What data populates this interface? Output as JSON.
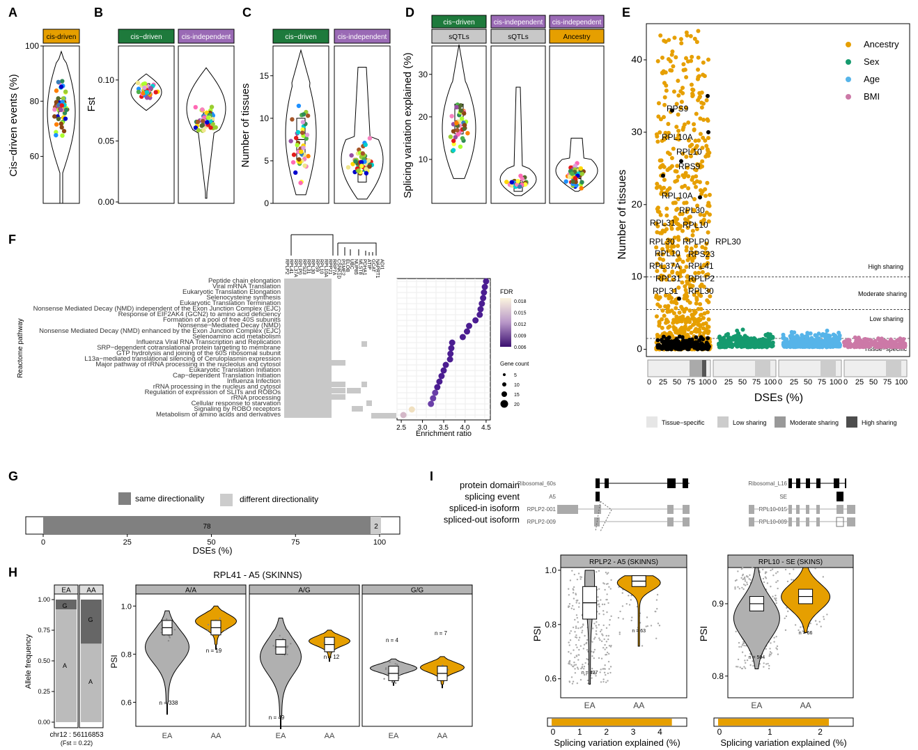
{
  "panel_labels": [
    "A",
    "B",
    "C",
    "D",
    "E",
    "F",
    "G",
    "H",
    "I"
  ],
  "colors": {
    "cis_driven": "#1e7a3c",
    "cis_independent": "#9a6ab5",
    "ancestry": "#e69f00",
    "sex": "#159a6e",
    "age": "#56b4e9",
    "bmi": "#cc79a7",
    "strip_gray": "#c8c8c8",
    "same_dir": "#808080",
    "diff_dir": "#cccccc"
  },
  "panelA": {
    "strip": "cis-driven",
    "ylabel": "Cis−driven events (%)",
    "yticks": [
      "60",
      "80",
      "100"
    ]
  },
  "panelB": {
    "strips": [
      "cis−driven",
      "cis-independent"
    ],
    "ylabel": "Fst",
    "yticks": [
      "0.00",
      "0.05",
      "0.10"
    ]
  },
  "panelC": {
    "strips": [
      "cis−driven",
      "cis-independent"
    ],
    "ylabel": "Number of tissues",
    "yticks": [
      "0",
      "5",
      "10",
      "15"
    ]
  },
  "panelD": {
    "strips_top": [
      "cis−driven",
      "cis-independent",
      "cis-independent"
    ],
    "strips_bottom": [
      "sQTLs",
      "sQTLs",
      "Ancestry"
    ],
    "ylabel": "Splicing variation explained (%)",
    "yticks": [
      "10",
      "20",
      "30"
    ]
  },
  "panelE": {
    "ylabel": "Number of tissues",
    "xlabel": "DSEs (%)",
    "yticks": [
      "0",
      "10",
      "20",
      "30",
      "40"
    ],
    "xticks": [
      "0",
      "25",
      "50",
      "75",
      "100"
    ],
    "legend": [
      "Ancestry",
      "Sex",
      "Age",
      "BMI"
    ],
    "sharing_labels": [
      "High sharing",
      "Moderate sharing",
      "Low sharing",
      "Tissue−specific"
    ],
    "genes": [
      "RPS9",
      "RPL10A",
      "RPL10",
      "RPS9",
      "RPL10A",
      "RPL30",
      "RPL31",
      "RPL10",
      "RPL30",
      "RPLP0",
      "RPL30",
      "RPL10",
      "RPS23",
      "RPL37A",
      "RPL41",
      "RPL31",
      "RPLP2",
      "RPL31",
      "RPL30"
    ],
    "bottom_legend": [
      "Tissue−specific",
      "Low sharing",
      "Moderate sharing",
      "High sharing"
    ]
  },
  "panelF": {
    "ylabel": "Reactome pathway",
    "xlabel": "Enrichment ratio",
    "xticks": [
      "2.5",
      "3.0",
      "3.5",
      "4.0",
      "4.5"
    ],
    "genes": [
      "RPLP2",
      "RPL41",
      "RPL37A",
      "RPLP0",
      "RPS23",
      "RPL31",
      "RPL30",
      "RPS9",
      "RPL10",
      "RPL10A",
      "RPP21",
      "RRP7A",
      "CSNK1D",
      "PSME2",
      "ELOB",
      "UBC",
      "NUP85",
      "MLST8",
      "PDHA1",
      "ATIP",
      "GCAT",
      "NAPRT1",
      "ADI1"
    ],
    "pathways": [
      "Peptide chain elongation",
      "Viral mRNA Translation",
      "Eukaryotic Translation Elongation",
      "Selenocysteine synthesis",
      "Eukaryotic Translation Termination",
      "Nonsense Mediated Decay (NMD) independent of the Exon Junction Complex (EJC)",
      "Response of EIF2AK4 (GCN2) to amino acid deficiency",
      "Formation of a pool of free 40S subunits",
      "Nonsense−Mediated Decay (NMD)",
      "Nonsense Mediated Decay (NMD) enhanced by the Exon Junction Complex (EJC)",
      "Selenoamino acid metabolism",
      "Influenza Viral RNA Transcription and Replication",
      "SRP−dependent cotranslational protein targeting to membrane",
      "GTP hydrolysis and joining of the 60S ribosomal subunit",
      "L13a−mediated translational silencing of Ceruloplasmin expression",
      "Major pathway of rRNA processing in the nucleolus and cytosol",
      "Eukaryotic Translation Initiation",
      "Cap−dependent Translation Initiation",
      "Influenza Infection",
      "rRNA processing in the nucleus and cytosol",
      "Regulation of expression of SLITs and ROBOs",
      "rRNA processing",
      "Cellular response to starvation",
      "Signaling by ROBO receptors",
      "Metabolism of amino acids and derivatives"
    ],
    "enrichment": [
      4.5,
      4.47,
      4.45,
      4.43,
      4.4,
      4.37,
      4.35,
      4.25,
      4.1,
      4.05,
      3.95,
      3.7,
      3.68,
      3.66,
      3.65,
      3.55,
      3.5,
      3.45,
      3.4,
      3.35,
      3.3,
      3.25,
      3.2,
      2.75,
      2.55
    ],
    "fdr_label": "FDR",
    "fdr_ticks": [
      "0.018",
      "0.015",
      "0.012",
      "0.009",
      "0.006"
    ],
    "count_label": "Gene count",
    "count_ticks": [
      "5",
      "10",
      "15",
      "20"
    ]
  },
  "panelG": {
    "legend": [
      "same directionality",
      "different directionality"
    ],
    "values": [
      "78",
      "2"
    ],
    "xlabel": "DSEs (%)",
    "xticks": [
      "0",
      "25",
      "50",
      "75",
      "100"
    ]
  },
  "panelH": {
    "title": "RPL41 - A5 (SKINNS)",
    "allele_strips": [
      "EA",
      "AA"
    ],
    "allele_ylabel": "Allele frequency",
    "allele_yticks": [
      "0.00",
      "0.25",
      "0.50",
      "0.75",
      "1.00"
    ],
    "allele_letters": [
      "G",
      "A",
      "G",
      "A"
    ],
    "locus": "chr12 : 56116853",
    "fst": "(Fst = 0.22)",
    "genotype_strips": [
      "A/A",
      "A/G",
      "G/G"
    ],
    "ylabel": "PSI",
    "yticks": [
      "0.6",
      "0.8",
      "1.0"
    ],
    "xticks": [
      "EA",
      "AA"
    ],
    "counts": [
      "n = 338",
      "n = 19",
      "n = 49",
      "n = 12",
      "n = 4",
      "n = 7"
    ]
  },
  "panelI": {
    "track_labels": [
      "protein domain",
      "splicing event",
      "spliced-in isoform",
      "spliced-out isoform"
    ],
    "left": {
      "domain": "Ribosomal_60s",
      "event": "A5",
      "iso_in": "RPLP2-001",
      "iso_out": "RPLP2-009"
    },
    "right": {
      "domain": "Ribosomal_L16",
      "event": "SE",
      "iso_in": "RPL10-015",
      "iso_out": "RPL10-009"
    },
    "left_plot": {
      "strip": "RPLP2 - A5 (SKINNS)",
      "yticks": [
        "0.6",
        "0.8",
        "1.0"
      ],
      "counts": [
        "n = 427",
        "n = 63"
      ],
      "bar_xticks": [
        "0",
        "1",
        "2",
        "3",
        "4"
      ],
      "bar_value": 4.5
    },
    "right_plot": {
      "strip": "RPL10 - SE (SKINS)",
      "yticks": [
        "0.8",
        "0.9"
      ],
      "counts": [
        "n = 504",
        "n = 66"
      ],
      "bar_xticks": [
        "0",
        "1",
        "2"
      ],
      "bar_value": 2.2
    },
    "ylabel": "PSI",
    "xticks": [
      "EA",
      "AA"
    ],
    "bar_xlabel": "Splicing variation explained (%)"
  },
  "chart_data": [
    {
      "type": "scatter",
      "panel": "A",
      "ylabel": "Cis−driven events (%)",
      "ylim": [
        43,
        100
      ]
    },
    {
      "type": "scatter",
      "panel": "B",
      "categories": [
        "cis−driven",
        "cis-independent"
      ],
      "ylabel": "Fst",
      "ylim": [
        0,
        0.12
      ]
    },
    {
      "type": "scatter",
      "panel": "C",
      "categories": [
        "cis−driven",
        "cis-independent"
      ],
      "ylabel": "Number of tissues",
      "ylim": [
        0,
        18
      ]
    },
    {
      "type": "scatter",
      "panel": "D",
      "categories": [
        "sQTLs",
        "sQTLs",
        "Ancestry"
      ],
      "ylabel": "Splicing variation explained (%)",
      "ylim": [
        0,
        37
      ]
    },
    {
      "type": "scatter",
      "panel": "E",
      "series": [
        {
          "name": "Ancestry"
        },
        {
          "name": "Sex"
        },
        {
          "name": "Age"
        },
        {
          "name": "BMI"
        }
      ],
      "xlabel": "DSEs (%)",
      "ylabel": "Number of tissues",
      "ylim": [
        -1,
        45
      ],
      "hlines": [
        1.5,
        5.5,
        10
      ]
    },
    {
      "type": "scatter",
      "panel": "F",
      "xlabel": "Enrichment ratio",
      "xlim": [
        2.4,
        4.6
      ]
    },
    {
      "type": "bar",
      "panel": "G",
      "categories": [
        "same directionality",
        "different directionality"
      ],
      "values": [
        78,
        2
      ],
      "xlabel": "DSEs (%)",
      "xlim": [
        -5,
        105
      ]
    },
    {
      "type": "bar",
      "panel": "H-allele",
      "categories": [
        "EA",
        "AA"
      ],
      "series": [
        {
          "name": "G",
          "values": [
            0.08,
            0.36
          ]
        },
        {
          "name": "A",
          "values": [
            0.92,
            0.64
          ]
        }
      ],
      "ylabel": "Allele frequency"
    },
    {
      "type": "bar",
      "panel": "I",
      "categories": [
        "RPLP2 - A5 (SKINNS)",
        "RPL10 - SE (SKINS)"
      ],
      "values": [
        4.5,
        2.2
      ],
      "xlabel": "Splicing variation explained (%)"
    }
  ]
}
